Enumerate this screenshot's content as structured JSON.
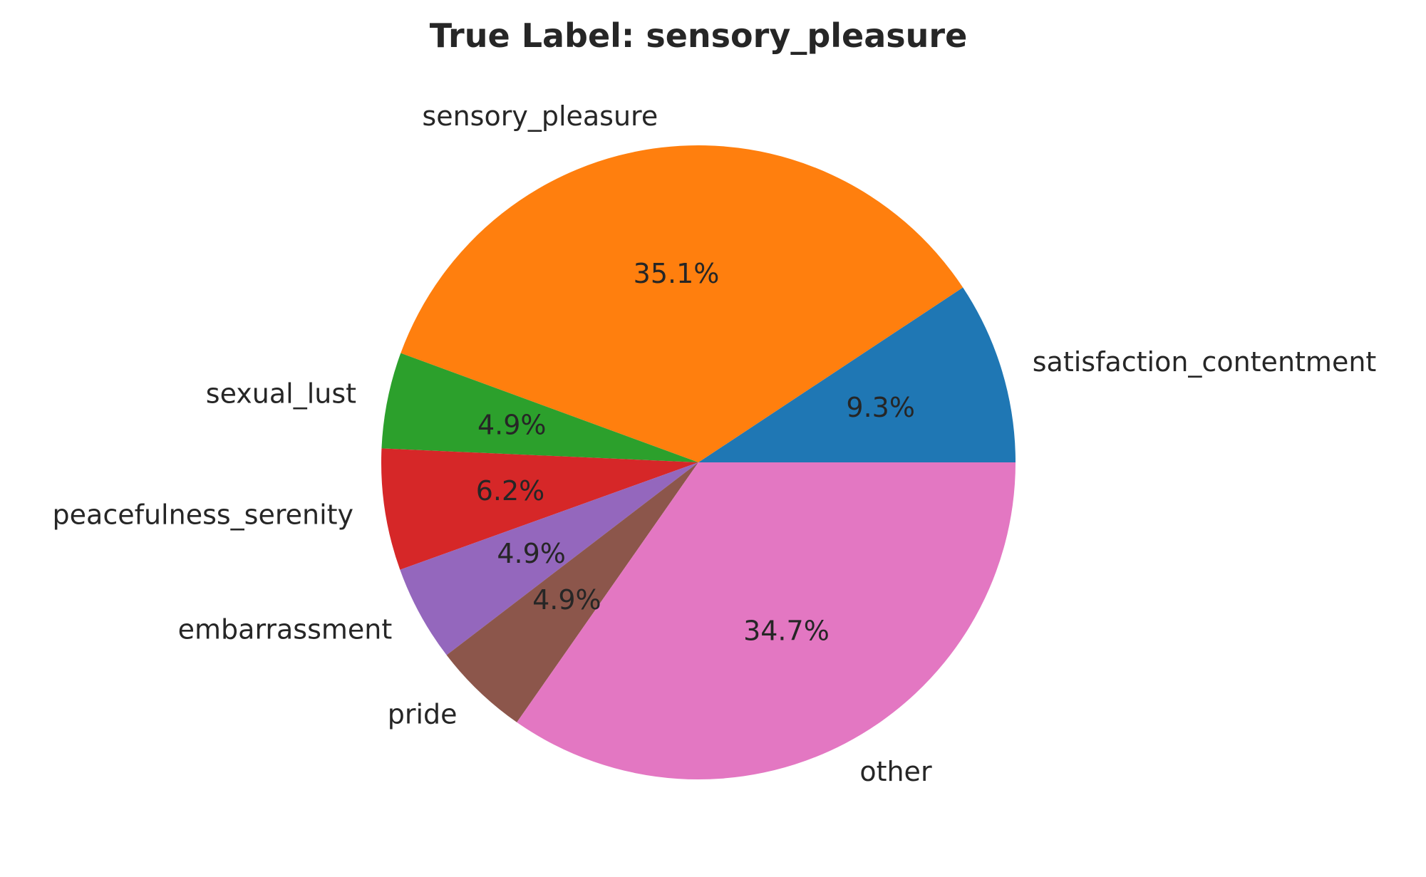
{
  "chart_data": {
    "type": "pie",
    "title": "True Label: sensory_pleasure",
    "start_angle_deg": 0,
    "direction": "counterclockwise",
    "slices": [
      {
        "label": "satisfaction_contentment",
        "value": 9.3,
        "pct_text": "9.3%",
        "color": "#1f77b4"
      },
      {
        "label": "sensory_pleasure",
        "value": 35.1,
        "pct_text": "35.1%",
        "color": "#ff7f0e"
      },
      {
        "label": "sexual_lust",
        "value": 4.9,
        "pct_text": "4.9%",
        "color": "#2ca02c"
      },
      {
        "label": "peacefulness_serenity",
        "value": 6.2,
        "pct_text": "6.2%",
        "color": "#d62728"
      },
      {
        "label": "embarrassment",
        "value": 4.9,
        "pct_text": "4.9%",
        "color": "#9467bd"
      },
      {
        "label": "pride",
        "value": 4.9,
        "pct_text": "4.9%",
        "color": "#8c564b"
      },
      {
        "label": "other",
        "value": 34.7,
        "pct_text": "34.7%",
        "color": "#e377c2"
      }
    ]
  }
}
